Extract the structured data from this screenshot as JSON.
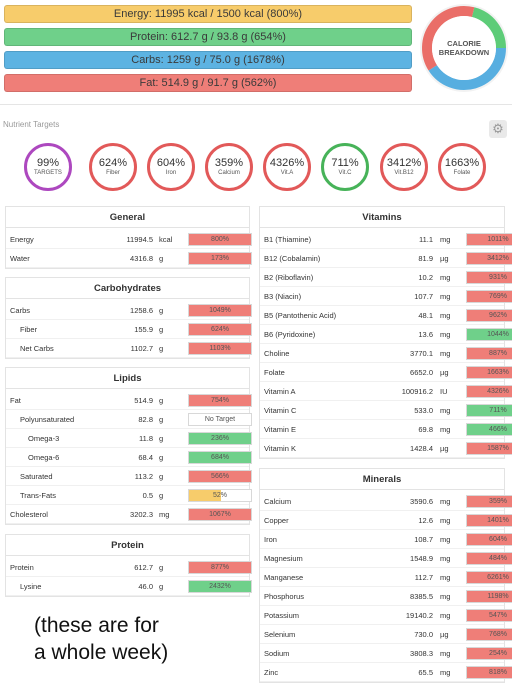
{
  "macros": [
    {
      "key": "energy",
      "label": "Energy: 11995 kcal / 1500 kcal (800%)"
    },
    {
      "key": "protein",
      "label": "Protein: 612.7 g / 93.8 g (654%)"
    },
    {
      "key": "carbs",
      "label": "Carbs: 1259 g / 75.0 g (1678%)"
    },
    {
      "key": "fat",
      "label": "Fat: 514.9 g / 91.7 g (562%)"
    }
  ],
  "donut": {
    "line1": "CALORIE",
    "line2": "BREAKDOWN",
    "segments": [
      {
        "name": "protein",
        "fraction": 0.21,
        "color": "#5dcc78"
      },
      {
        "name": "carbs",
        "fraction": 0.41,
        "color": "#57aee0"
      },
      {
        "name": "fat",
        "fraction": 0.38,
        "color": "#ea6e68"
      }
    ]
  },
  "nutrient_targets": {
    "title": "Nutrient Targets",
    "circles": [
      {
        "value": "99%",
        "label": "TARGETS",
        "color": "purple"
      },
      {
        "value": "624%",
        "label": "Fiber",
        "color": "red"
      },
      {
        "value": "604%",
        "label": "Iron",
        "color": "red"
      },
      {
        "value": "359%",
        "label": "Calcium",
        "color": "red"
      },
      {
        "value": "4326%",
        "label": "Vit.A",
        "color": "red"
      },
      {
        "value": "711%",
        "label": "Vit.C",
        "color": "green"
      },
      {
        "value": "3412%",
        "label": "Vit.B12",
        "color": "red"
      },
      {
        "value": "1663%",
        "label": "Folate",
        "color": "red"
      }
    ]
  },
  "general": {
    "title": "General",
    "rows": [
      {
        "name": "Energy",
        "value": "11994.5",
        "unit": "kcal",
        "pct": "800%",
        "fill": 1,
        "color": "red",
        "indent": 0
      },
      {
        "name": "Water",
        "value": "4316.8",
        "unit": "g",
        "pct": "173%",
        "fill": 1,
        "color": "red",
        "indent": 0
      }
    ]
  },
  "carbohydrates": {
    "title": "Carbohydrates",
    "rows": [
      {
        "name": "Carbs",
        "value": "1258.6",
        "unit": "g",
        "pct": "1049%",
        "fill": 1,
        "color": "red",
        "indent": 0
      },
      {
        "name": "Fiber",
        "value": "155.9",
        "unit": "g",
        "pct": "624%",
        "fill": 1,
        "color": "red",
        "indent": 1
      },
      {
        "name": "Net Carbs",
        "value": "1102.7",
        "unit": "g",
        "pct": "1103%",
        "fill": 1,
        "color": "red",
        "indent": 1
      }
    ]
  },
  "lipids": {
    "title": "Lipids",
    "rows": [
      {
        "name": "Fat",
        "value": "514.9",
        "unit": "g",
        "pct": "754%",
        "fill": 1,
        "color": "red",
        "indent": 0
      },
      {
        "name": "Polyunsaturated",
        "value": "82.8",
        "unit": "g",
        "pct": "No Target",
        "fill": 0,
        "color": "gray",
        "indent": 1
      },
      {
        "name": "Omega-3",
        "value": "11.8",
        "unit": "g",
        "pct": "236%",
        "fill": 1,
        "color": "green",
        "indent": 2
      },
      {
        "name": "Omega-6",
        "value": "68.4",
        "unit": "g",
        "pct": "684%",
        "fill": 1,
        "color": "green",
        "indent": 2
      },
      {
        "name": "Saturated",
        "value": "113.2",
        "unit": "g",
        "pct": "566%",
        "fill": 1,
        "color": "red",
        "indent": 1
      },
      {
        "name": "Trans-Fats",
        "value": "0.5",
        "unit": "g",
        "pct": "52%",
        "fill": 0.52,
        "color": "yellow",
        "indent": 1
      },
      {
        "name": "Cholesterol",
        "value": "3202.3",
        "unit": "mg",
        "pct": "1067%",
        "fill": 1,
        "color": "red",
        "indent": 0
      }
    ]
  },
  "protein": {
    "title": "Protein",
    "rows": [
      {
        "name": "Protein",
        "value": "612.7",
        "unit": "g",
        "pct": "877%",
        "fill": 1,
        "color": "red",
        "indent": 0
      },
      {
        "name": "Lysine",
        "value": "46.0",
        "unit": "g",
        "pct": "2432%",
        "fill": 1,
        "color": "green",
        "indent": 1
      }
    ]
  },
  "vitamins": {
    "title": "Vitamins",
    "rows": [
      {
        "name": "B1 (Thiamine)",
        "value": "11.1",
        "unit": "mg",
        "pct": "1011%",
        "fill": 1,
        "color": "red"
      },
      {
        "name": "B12 (Cobalamin)",
        "value": "81.9",
        "unit": "µg",
        "pct": "3412%",
        "fill": 1,
        "color": "red"
      },
      {
        "name": "B2 (Riboflavin)",
        "value": "10.2",
        "unit": "mg",
        "pct": "931%",
        "fill": 1,
        "color": "red"
      },
      {
        "name": "B3 (Niacin)",
        "value": "107.7",
        "unit": "mg",
        "pct": "769%",
        "fill": 1,
        "color": "red"
      },
      {
        "name": "B5 (Pantothenic Acid)",
        "value": "48.1",
        "unit": "mg",
        "pct": "962%",
        "fill": 1,
        "color": "red"
      },
      {
        "name": "B6 (Pyridoxine)",
        "value": "13.6",
        "unit": "mg",
        "pct": "1044%",
        "fill": 1,
        "color": "green"
      },
      {
        "name": "Choline",
        "value": "3770.1",
        "unit": "mg",
        "pct": "887%",
        "fill": 1,
        "color": "red"
      },
      {
        "name": "Folate",
        "value": "6652.0",
        "unit": "µg",
        "pct": "1663%",
        "fill": 1,
        "color": "red"
      },
      {
        "name": "Vitamin A",
        "value": "100916.2",
        "unit": "IU",
        "pct": "4326%",
        "fill": 1,
        "color": "red"
      },
      {
        "name": "Vitamin C",
        "value": "533.0",
        "unit": "mg",
        "pct": "711%",
        "fill": 1,
        "color": "green"
      },
      {
        "name": "Vitamin E",
        "value": "69.8",
        "unit": "mg",
        "pct": "466%",
        "fill": 1,
        "color": "green"
      },
      {
        "name": "Vitamin K",
        "value": "1428.4",
        "unit": "µg",
        "pct": "1587%",
        "fill": 1,
        "color": "red"
      }
    ]
  },
  "minerals": {
    "title": "Minerals",
    "rows": [
      {
        "name": "Calcium",
        "value": "3590.6",
        "unit": "mg",
        "pct": "359%",
        "fill": 1,
        "color": "red"
      },
      {
        "name": "Copper",
        "value": "12.6",
        "unit": "mg",
        "pct": "1401%",
        "fill": 1,
        "color": "red"
      },
      {
        "name": "Iron",
        "value": "108.7",
        "unit": "mg",
        "pct": "604%",
        "fill": 1,
        "color": "red"
      },
      {
        "name": "Magnesium",
        "value": "1548.9",
        "unit": "mg",
        "pct": "484%",
        "fill": 1,
        "color": "red"
      },
      {
        "name": "Manganese",
        "value": "112.7",
        "unit": "mg",
        "pct": "6261%",
        "fill": 1,
        "color": "red"
      },
      {
        "name": "Phosphorus",
        "value": "8385.5",
        "unit": "mg",
        "pct": "1198%",
        "fill": 1,
        "color": "red"
      },
      {
        "name": "Potassium",
        "value": "19140.2",
        "unit": "mg",
        "pct": "547%",
        "fill": 1,
        "color": "red"
      },
      {
        "name": "Selenium",
        "value": "730.0",
        "unit": "µg",
        "pct": "768%",
        "fill": 1,
        "color": "red"
      },
      {
        "name": "Sodium",
        "value": "3808.3",
        "unit": "mg",
        "pct": "254%",
        "fill": 1,
        "color": "red"
      },
      {
        "name": "Zinc",
        "value": "65.5",
        "unit": "mg",
        "pct": "818%",
        "fill": 1,
        "color": "red"
      }
    ]
  },
  "note": {
    "line1": "(these are for",
    "line2": "a whole week)"
  }
}
